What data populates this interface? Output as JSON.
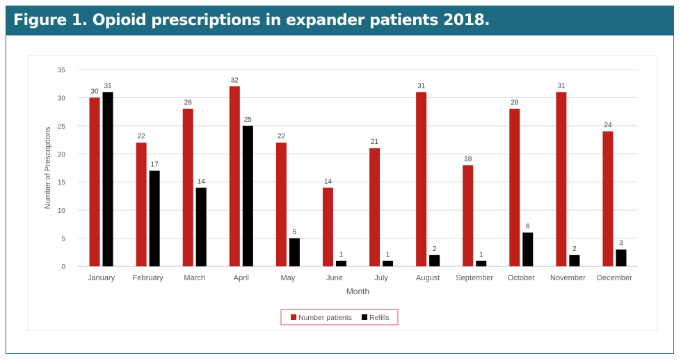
{
  "figure_title": "Figure 1. Opioid prescriptions in expander patients 2018.",
  "chart_data": {
    "type": "bar",
    "title": "",
    "xlabel": "Month",
    "ylabel": "Number of Prescriptions",
    "ylim": [
      0,
      35
    ],
    "yticks": [
      0,
      5,
      10,
      15,
      20,
      25,
      30,
      35
    ],
    "grid": true,
    "legend_position": "bottom",
    "categories": [
      "January",
      "February",
      "March",
      "April",
      "May",
      "June",
      "July",
      "August",
      "September",
      "October",
      "November",
      "December"
    ],
    "series": [
      {
        "name": "Number patients",
        "color": "#c0201b",
        "values": [
          30,
          22,
          28,
          32,
          22,
          14,
          21,
          31,
          18,
          28,
          31,
          24
        ]
      },
      {
        "name": "Refills",
        "color": "#000000",
        "values": [
          31,
          17,
          14,
          25,
          5,
          1,
          1,
          2,
          1,
          6,
          2,
          3
        ]
      }
    ]
  }
}
